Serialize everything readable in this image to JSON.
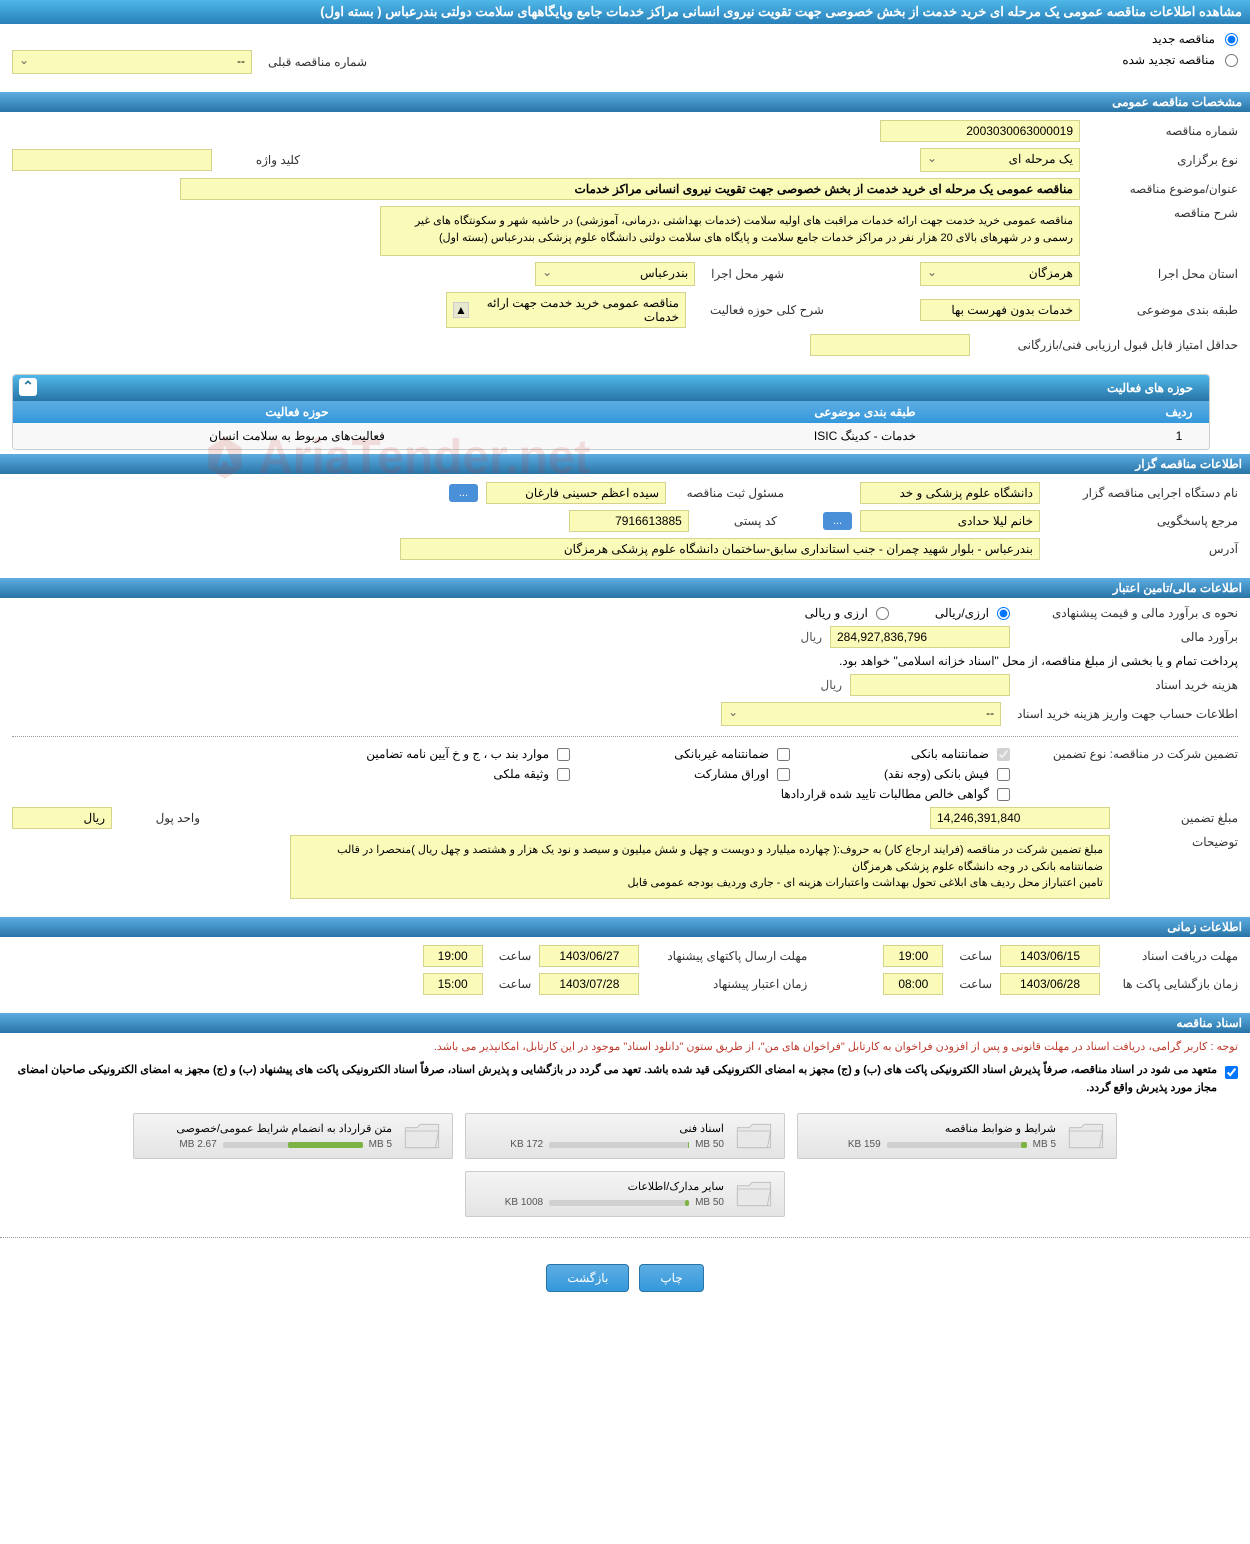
{
  "pageTitle": "مشاهده اطلاعات مناقصه عمومی یک مرحله ای خرید خدمت از بخش خصوصی جهت تقویت نیروی انسانی مراکز خدمات جامع وپایگاههای سلامت دولتی بندرعباس ( بسته اول)",
  "radioOptions": {
    "new": "مناقصه جدید",
    "renewed": "مناقصه تجدید شده"
  },
  "prevTenderLabel": "شماره مناقصه قبلی",
  "prevTenderValue": "--",
  "sections": {
    "general": "مشخصات مناقصه عمومی",
    "organizer": "اطلاعات مناقصه گزار",
    "financial": "اطلاعات مالی/تامین اعتبار",
    "timing": "اطلاعات زمانی",
    "docs": "اسناد مناقصه"
  },
  "general": {
    "tenderNoLabel": "شماره مناقصه",
    "tenderNo": "2003030063000019",
    "typeLabel": "نوع برگزاری",
    "typeValue": "یک مرحله ای",
    "keywordLabel": "کلید واژه",
    "keywordValue": "",
    "titleLabel": "عنوان/موضوع مناقصه",
    "titleValue": "مناقصه عمومی یک مرحله ای خرید خدمت از بخش خصوصی جهت تقویت نیروی انسانی مراکز خدمات",
    "descLabel": "شرح مناقصه",
    "descValue": "مناقصه عمومی خرید خدمت جهت ارائه خدمات مراقبت های اولیه سلامت (خدمات بهداشتی ،درمانی، آموزشی) در حاشیه شهر و سکونتگاه های غیر رسمی و در شهرهای بالای 20 هزار نفر در مراکز خدمات جامع سلامت و پایگاه های سلامت دولتی دانشگاه علوم پزشکی بندرعباس (بسته اول)",
    "provinceLabel": "استان محل اجرا",
    "provinceValue": "هرمزگان",
    "cityLabel": "شهر محل اجرا",
    "cityValue": "بندرعباس",
    "categoryLabel": "طبقه بندی موضوعی",
    "categoryValue": "خدمات بدون فهرست بها",
    "activityScopeLabel": "شرح کلی حوزه فعالیت",
    "activityScopeValue": "مناقصه عمومی خرید خدمت جهت ارائه خدمات",
    "minScoreLabel": "حداقل امتیاز قابل قبول ارزیابی فنی/بازرگانی",
    "minScoreValue": ""
  },
  "activityTable": {
    "title": "حوزه های فعالیت",
    "col1": "ردیف",
    "col2": "طبقه بندی موضوعی",
    "col3": "حوزه فعالیت",
    "row1": {
      "n": "1",
      "cat": "خدمات - کدینگ ISIC",
      "scope": "فعالیت‌های مربوط به سلامت انسان"
    }
  },
  "organizer": {
    "execLabel": "نام دستگاه اجرایی مناقصه گزار",
    "execValue": "دانشگاه علوم پزشکی و خد",
    "regLabel": "مسئول ثبت مناقصه",
    "regValue": "سیده اعظم حسینی فارغان",
    "respLabel": "مرجع پاسخگویی",
    "respValue": "خانم لیلا حدادی",
    "postLabel": "کد پستی",
    "postValue": "7916613885",
    "addrLabel": "آدرس",
    "addrValue": "بندرعباس - بلوار شهید چمران - جنب استانداری سابق-ساختمان دانشگاه علوم پزشکی هرمزگان"
  },
  "financial": {
    "estMethodLabel": "نحوه ی برآورد مالی و قیمت پیشنهادی",
    "opt1": "ارزی/ریالی",
    "opt2": "ارزی و ریالی",
    "estLabel": "برآورد مالی",
    "estValue": "284,927,836,796",
    "rial": "ریال",
    "treasuryNote": "پرداخت تمام و یا بخشی از مبلغ مناقصه، از محل \"اسناد خزانه اسلامی\" خواهد بود.",
    "docCostLabel": "هزینه خرید اسناد",
    "docCostValue": "",
    "accountLabel": "اطلاعات حساب جهت واریز هزینه خرید اسناد",
    "accountValue": "--",
    "guaranteeTypeLabel": "تضمین شرکت در مناقصه:    نوع تضمین",
    "checkboxes": {
      "bank": "ضمانتنامه بانکی",
      "nonbank": "ضمانتنامه غیربانکی",
      "bondItems": "موارد بند ب ، ج و خ آیین نامه تضامین",
      "cash": "فیش بانکی (وجه نقد)",
      "shares": "اوراق مشارکت",
      "property": "وثیقه ملکی",
      "receivables": "گواهی خالص مطالبات تایید شده قراردادها"
    },
    "guaranteeAmtLabel": "مبلغ تضمین",
    "guaranteeAmtValue": "14,246,391,840",
    "currencyUnitLabel": "واحد پول",
    "currencyUnitValue": "ریال",
    "notesLabel": "توضیحات",
    "notesValue": "مبلغ تضمین شرکت در مناقصه (فرایند ارجاع کار) به حروف:( چهارده میلیارد و دویست و چهل و شش میلیون و سیصد و نود یک هزار و هشتصد و چهل  ریال )منحصرا در قالب ضمانتنامه بانکی در وجه دانشگاه علوم پزشکی هرمزگان\nتامین اعتباراز محل ردیف های ابلاغی تحول بهداشت واعتبارات هزینه ای - جاری وردیف بودجه عمومی قابل"
  },
  "timing": {
    "docDeadlineLabel": "مهلت دریافت اسناد",
    "docDeadlineDate": "1403/06/15",
    "docDeadlineTime": "19:00",
    "envDeadlineLabel": "مهلت ارسال پاکتهای پیشنهاد",
    "envDeadlineDate": "1403/06/27",
    "envDeadlineTime": "19:00",
    "openLabel": "زمان بازگشایی پاکت ها",
    "openDate": "1403/06/28",
    "openTime": "08:00",
    "validLabel": "زمان اعتبار پیشنهاد",
    "validDate": "1403/07/28",
    "validTime": "15:00",
    "timeLabel": "ساعت"
  },
  "docs": {
    "note1": "توجه : کاربر گرامی، دریافت اسناد در مهلت قانونی و پس از افزودن فراخوان به کارتابل \"فراخوان های من\"، از طریق ستون \"دانلود اسناد\" موجود در این کارتابل، امکانپذیر می باشد.",
    "note2": "متعهد می شود در اسناد مناقصه، صرفاً پذیرش اسناد الکترونیکی پاکت های (ب) و (ج) مجهز به امضای الکترونیکی قید شده باشد. تعهد می گردد در بازگشایی و پذیرش اسناد، صرفاً اسناد الکترونیکی پاکت های پیشنهاد (ب) و (ج) مجهز به امضای الکترونیکی صاحبان امضای مجاز مورد پذیرش واقع گردد.",
    "files": [
      {
        "title": "شرایط و ضوابط مناقصه",
        "size": "159 KB",
        "max": "5 MB",
        "pct": 4
      },
      {
        "title": "اسناد فنی",
        "size": "172 KB",
        "max": "50 MB",
        "pct": 1
      },
      {
        "title": "متن قرارداد به انضمام شرایط عمومی/خصوصی",
        "size": "2.67 MB",
        "max": "5 MB",
        "pct": 53
      },
      {
        "title": "سایر مدارک/اطلاعات",
        "size": "1008 KB",
        "max": "50 MB",
        "pct": 3
      }
    ]
  },
  "buttons": {
    "print": "چاپ",
    "back": "بازگشت"
  },
  "watermark": "AriaTender.net"
}
